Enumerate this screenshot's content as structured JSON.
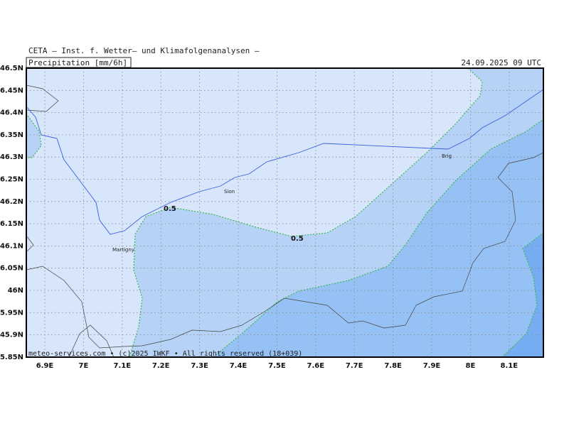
{
  "header": {
    "institute": "CETA – Inst. f. Wetter– und Klimafolgenanalysen –",
    "variable": "Precipitation [mm/6h]",
    "valid_time": "24.09.2025 09 UTC"
  },
  "lon_labels": [
    "6.9E",
    "7E",
    "7.1E",
    "7.2E",
    "7.3E",
    "7.4E",
    "7.5E",
    "7.6E",
    "7.7E",
    "7.8E",
    "7.9E",
    "8E",
    "8.1E"
  ],
  "lat_labels": [
    "46.5N",
    "46.45N",
    "46.4N",
    "46.35N",
    "46.3N",
    "46.25N",
    "46.2N",
    "46.15N",
    "46.1N",
    "46.05N",
    "46N",
    "5.95N",
    "45.9N",
    "5.85N"
  ],
  "places": [
    "Sion",
    "Martigny",
    "Brig"
  ],
  "contour_labels": [
    0.5,
    0.5
  ],
  "footer": "meteo-services.com • (c)2025 IWKF • All rights reserved (18+039)"
}
